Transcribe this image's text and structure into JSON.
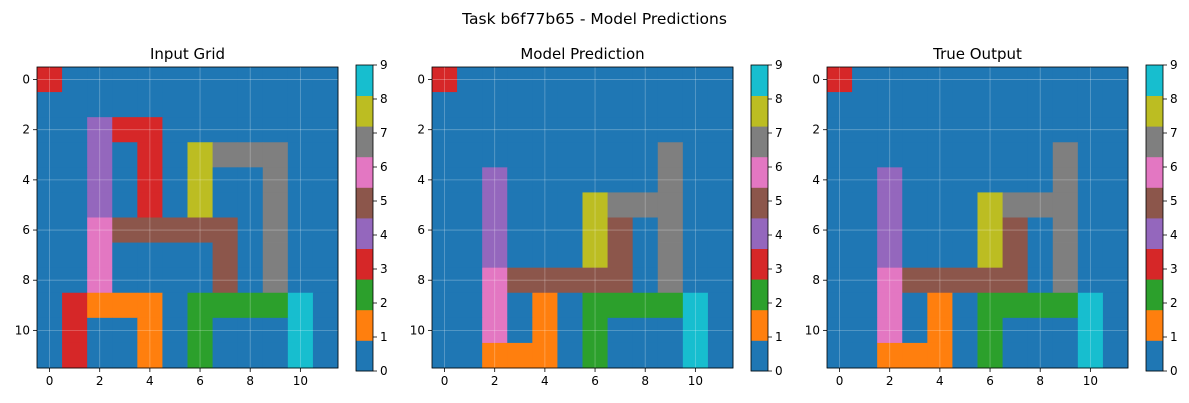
{
  "figure": {
    "suptitle": "Task b6f77b65 - Model Predictions"
  },
  "palette": {
    "0": "#1f77b4",
    "1": "#ff7f0e",
    "2": "#2ca02c",
    "3": "#d62728",
    "4": "#9467bd",
    "5": "#8c564b",
    "6": "#e377c2",
    "7": "#7f7f7f",
    "8": "#bcbd22",
    "9": "#17becf"
  },
  "chart_data": [
    {
      "type": "heatmap",
      "title": "Input Grid",
      "xticks": [
        "0",
        "2",
        "4",
        "6",
        "8",
        "10"
      ],
      "yticks": [
        "0",
        "2",
        "4",
        "6",
        "8",
        "10"
      ],
      "colorbar": {
        "min": 0,
        "max": 9,
        "ticks": [
          "0",
          "1",
          "2",
          "3",
          "4",
          "5",
          "6",
          "7",
          "8",
          "9"
        ]
      },
      "grid_on": true,
      "grid": [
        [
          3,
          0,
          0,
          0,
          0,
          0,
          0,
          0,
          0,
          0,
          0,
          0
        ],
        [
          0,
          0,
          0,
          0,
          0,
          0,
          0,
          0,
          0,
          0,
          0,
          0
        ],
        [
          0,
          0,
          4,
          3,
          3,
          0,
          0,
          0,
          0,
          0,
          0,
          0
        ],
        [
          0,
          0,
          4,
          0,
          3,
          0,
          8,
          7,
          7,
          7,
          0,
          0
        ],
        [
          0,
          0,
          4,
          0,
          3,
          0,
          8,
          0,
          0,
          7,
          0,
          0
        ],
        [
          0,
          0,
          4,
          0,
          3,
          0,
          8,
          0,
          0,
          7,
          0,
          0
        ],
        [
          0,
          0,
          6,
          5,
          5,
          5,
          5,
          5,
          0,
          7,
          0,
          0
        ],
        [
          0,
          0,
          6,
          0,
          0,
          0,
          0,
          5,
          0,
          7,
          0,
          0
        ],
        [
          0,
          0,
          6,
          0,
          0,
          0,
          0,
          5,
          0,
          7,
          0,
          0
        ],
        [
          0,
          3,
          1,
          1,
          1,
          0,
          2,
          2,
          2,
          2,
          9,
          0
        ],
        [
          0,
          3,
          0,
          0,
          1,
          0,
          2,
          0,
          0,
          0,
          9,
          0
        ],
        [
          0,
          3,
          0,
          0,
          1,
          0,
          2,
          0,
          0,
          0,
          9,
          0
        ]
      ]
    },
    {
      "type": "heatmap",
      "title": "Model Prediction",
      "xticks": [
        "0",
        "2",
        "4",
        "6",
        "8",
        "10"
      ],
      "yticks": [
        "0",
        "2",
        "4",
        "6",
        "8",
        "10"
      ],
      "colorbar": {
        "min": 0,
        "max": 9,
        "ticks": [
          "0",
          "1",
          "2",
          "3",
          "4",
          "5",
          "6",
          "7",
          "8",
          "9"
        ]
      },
      "grid_on": true,
      "grid": [
        [
          3,
          0,
          0,
          0,
          0,
          0,
          0,
          0,
          0,
          0,
          0,
          0
        ],
        [
          0,
          0,
          0,
          0,
          0,
          0,
          0,
          0,
          0,
          0,
          0,
          0
        ],
        [
          0,
          0,
          0,
          0,
          0,
          0,
          0,
          0,
          0,
          0,
          0,
          0
        ],
        [
          0,
          0,
          0,
          0,
          0,
          0,
          0,
          0,
          0,
          7,
          0,
          0
        ],
        [
          0,
          0,
          4,
          0,
          0,
          0,
          0,
          0,
          0,
          7,
          0,
          0
        ],
        [
          0,
          0,
          4,
          0,
          0,
          0,
          8,
          7,
          7,
          7,
          0,
          0
        ],
        [
          0,
          0,
          4,
          0,
          0,
          0,
          8,
          5,
          0,
          7,
          0,
          0
        ],
        [
          0,
          0,
          4,
          0,
          0,
          0,
          8,
          5,
          0,
          7,
          0,
          0
        ],
        [
          0,
          0,
          6,
          5,
          5,
          5,
          5,
          5,
          0,
          7,
          0,
          0
        ],
        [
          0,
          0,
          6,
          0,
          1,
          0,
          2,
          2,
          2,
          2,
          9,
          0
        ],
        [
          0,
          0,
          6,
          0,
          1,
          0,
          2,
          0,
          0,
          0,
          9,
          0
        ],
        [
          0,
          0,
          1,
          1,
          1,
          0,
          2,
          0,
          0,
          0,
          9,
          0
        ]
      ]
    },
    {
      "type": "heatmap",
      "title": "True Output",
      "xticks": [
        "0",
        "2",
        "4",
        "6",
        "8",
        "10"
      ],
      "yticks": [
        "0",
        "2",
        "4",
        "6",
        "8",
        "10"
      ],
      "colorbar": {
        "min": 0,
        "max": 9,
        "ticks": [
          "0",
          "1",
          "2",
          "3",
          "4",
          "5",
          "6",
          "7",
          "8",
          "9"
        ]
      },
      "grid_on": true,
      "grid": [
        [
          3,
          0,
          0,
          0,
          0,
          0,
          0,
          0,
          0,
          0,
          0,
          0
        ],
        [
          0,
          0,
          0,
          0,
          0,
          0,
          0,
          0,
          0,
          0,
          0,
          0
        ],
        [
          0,
          0,
          0,
          0,
          0,
          0,
          0,
          0,
          0,
          0,
          0,
          0
        ],
        [
          0,
          0,
          0,
          0,
          0,
          0,
          0,
          0,
          0,
          7,
          0,
          0
        ],
        [
          0,
          0,
          4,
          0,
          0,
          0,
          0,
          0,
          0,
          7,
          0,
          0
        ],
        [
          0,
          0,
          4,
          0,
          0,
          0,
          8,
          7,
          7,
          7,
          0,
          0
        ],
        [
          0,
          0,
          4,
          0,
          0,
          0,
          8,
          5,
          0,
          7,
          0,
          0
        ],
        [
          0,
          0,
          4,
          0,
          0,
          0,
          8,
          5,
          0,
          7,
          0,
          0
        ],
        [
          0,
          0,
          6,
          5,
          5,
          5,
          5,
          5,
          0,
          7,
          0,
          0
        ],
        [
          0,
          0,
          6,
          0,
          1,
          0,
          2,
          2,
          2,
          2,
          9,
          0
        ],
        [
          0,
          0,
          6,
          0,
          1,
          0,
          2,
          0,
          0,
          0,
          9,
          0
        ],
        [
          0,
          0,
          1,
          1,
          1,
          0,
          2,
          0,
          0,
          0,
          9,
          0
        ]
      ]
    }
  ]
}
